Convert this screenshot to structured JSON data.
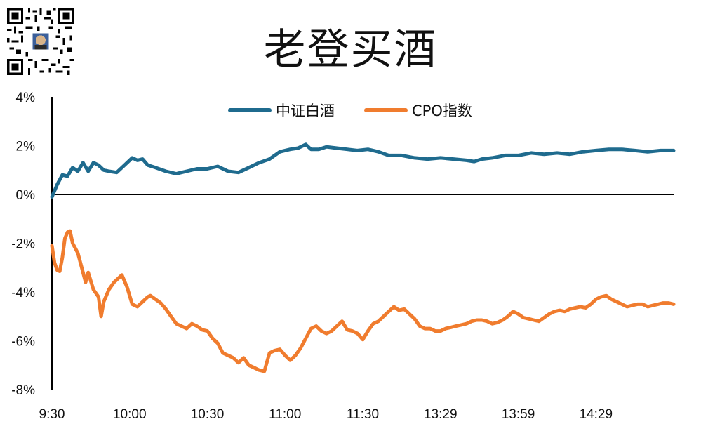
{
  "title": "老登买酒",
  "colors": {
    "series_1": "#1f6b8e",
    "series_2": "#f07c2e",
    "axis": "#000000"
  },
  "icons": {
    "qr": "qr-code-icon",
    "avatar": "avatar-icon"
  },
  "chart_data": {
    "type": "line",
    "title": "老登买酒",
    "xlabel": "",
    "ylabel": "",
    "ylim": [
      -8,
      4
    ],
    "y_ticks": [
      "4%",
      "2%",
      "0%",
      "-2%",
      "-4%",
      "-6%",
      "-8%"
    ],
    "y_tick_values": [
      4,
      2,
      0,
      -2,
      -4,
      -6,
      -8
    ],
    "x_ticks": [
      "9:30",
      "10:00",
      "10:30",
      "11:00",
      "11:30",
      "13:29",
      "13:59",
      "14:29"
    ],
    "x_tick_index": [
      0,
      30,
      60,
      90,
      120,
      150,
      180,
      210
    ],
    "x_count": 240,
    "grid": false,
    "legend_position": "top-center",
    "series": [
      {
        "name": "中证白酒",
        "points": [
          [
            0,
            -0.1
          ],
          [
            2,
            0.4
          ],
          [
            4,
            0.8
          ],
          [
            6,
            0.75
          ],
          [
            8,
            1.1
          ],
          [
            10,
            0.95
          ],
          [
            12,
            1.3
          ],
          [
            14,
            0.95
          ],
          [
            16,
            1.3
          ],
          [
            18,
            1.2
          ],
          [
            20,
            1.0
          ],
          [
            22,
            0.95
          ],
          [
            25,
            0.9
          ],
          [
            28,
            1.2
          ],
          [
            31,
            1.5
          ],
          [
            33,
            1.4
          ],
          [
            35,
            1.45
          ],
          [
            37,
            1.2
          ],
          [
            40,
            1.1
          ],
          [
            44,
            0.95
          ],
          [
            48,
            0.85
          ],
          [
            52,
            0.95
          ],
          [
            56,
            1.05
          ],
          [
            60,
            1.05
          ],
          [
            64,
            1.15
          ],
          [
            68,
            0.95
          ],
          [
            72,
            0.9
          ],
          [
            76,
            1.1
          ],
          [
            80,
            1.3
          ],
          [
            84,
            1.45
          ],
          [
            88,
            1.75
          ],
          [
            92,
            1.85
          ],
          [
            95,
            1.9
          ],
          [
            98,
            2.05
          ],
          [
            100,
            1.85
          ],
          [
            103,
            1.85
          ],
          [
            106,
            1.95
          ],
          [
            110,
            1.9
          ],
          [
            114,
            1.85
          ],
          [
            118,
            1.8
          ],
          [
            122,
            1.85
          ],
          [
            126,
            1.75
          ],
          [
            130,
            1.6
          ],
          [
            135,
            1.6
          ],
          [
            140,
            1.5
          ],
          [
            145,
            1.45
          ],
          [
            150,
            1.5
          ],
          [
            155,
            1.45
          ],
          [
            160,
            1.4
          ],
          [
            163,
            1.35
          ],
          [
            166,
            1.45
          ],
          [
            170,
            1.5
          ],
          [
            175,
            1.6
          ],
          [
            180,
            1.6
          ],
          [
            185,
            1.7
          ],
          [
            190,
            1.65
          ],
          [
            195,
            1.7
          ],
          [
            200,
            1.65
          ],
          [
            205,
            1.75
          ],
          [
            210,
            1.8
          ],
          [
            215,
            1.85
          ],
          [
            220,
            1.85
          ],
          [
            225,
            1.8
          ],
          [
            230,
            1.75
          ],
          [
            235,
            1.8
          ],
          [
            240,
            1.8
          ]
        ]
      },
      {
        "name": "CPO指数",
        "points": [
          [
            0,
            -2.1
          ],
          [
            1,
            -2.8
          ],
          [
            2,
            -3.1
          ],
          [
            3,
            -3.15
          ],
          [
            4,
            -2.6
          ],
          [
            5,
            -1.8
          ],
          [
            6,
            -1.55
          ],
          [
            7,
            -1.5
          ],
          [
            8,
            -2.0
          ],
          [
            10,
            -2.4
          ],
          [
            12,
            -3.2
          ],
          [
            13,
            -3.6
          ],
          [
            14,
            -3.2
          ],
          [
            16,
            -3.9
          ],
          [
            18,
            -4.2
          ],
          [
            19,
            -5.0
          ],
          [
            20,
            -4.4
          ],
          [
            22,
            -3.9
          ],
          [
            24,
            -3.6
          ],
          [
            26,
            -3.4
          ],
          [
            27,
            -3.3
          ],
          [
            29,
            -3.8
          ],
          [
            31,
            -4.5
          ],
          [
            33,
            -4.6
          ],
          [
            35,
            -4.4
          ],
          [
            37,
            -4.2
          ],
          [
            38,
            -4.15
          ],
          [
            40,
            -4.3
          ],
          [
            42,
            -4.45
          ],
          [
            44,
            -4.7
          ],
          [
            46,
            -5.0
          ],
          [
            48,
            -5.3
          ],
          [
            50,
            -5.4
          ],
          [
            52,
            -5.5
          ],
          [
            54,
            -5.3
          ],
          [
            56,
            -5.4
          ],
          [
            58,
            -5.55
          ],
          [
            60,
            -5.6
          ],
          [
            62,
            -5.9
          ],
          [
            64,
            -6.1
          ],
          [
            66,
            -6.5
          ],
          [
            68,
            -6.6
          ],
          [
            70,
            -6.7
          ],
          [
            72,
            -6.9
          ],
          [
            74,
            -6.7
          ],
          [
            76,
            -7.0
          ],
          [
            78,
            -7.1
          ],
          [
            80,
            -7.2
          ],
          [
            82,
            -7.25
          ],
          [
            84,
            -6.5
          ],
          [
            86,
            -6.4
          ],
          [
            88,
            -6.35
          ],
          [
            90,
            -6.6
          ],
          [
            92,
            -6.8
          ],
          [
            94,
            -6.6
          ],
          [
            96,
            -6.3
          ],
          [
            98,
            -5.9
          ],
          [
            100,
            -5.5
          ],
          [
            102,
            -5.4
          ],
          [
            104,
            -5.6
          ],
          [
            106,
            -5.7
          ],
          [
            108,
            -5.6
          ],
          [
            110,
            -5.4
          ],
          [
            112,
            -5.2
          ],
          [
            114,
            -5.55
          ],
          [
            116,
            -5.6
          ],
          [
            118,
            -5.7
          ],
          [
            120,
            -5.95
          ],
          [
            122,
            -5.6
          ],
          [
            124,
            -5.3
          ],
          [
            126,
            -5.2
          ],
          [
            128,
            -5.0
          ],
          [
            130,
            -4.8
          ],
          [
            132,
            -4.6
          ],
          [
            134,
            -4.75
          ],
          [
            136,
            -4.7
          ],
          [
            138,
            -4.9
          ],
          [
            140,
            -5.1
          ],
          [
            142,
            -5.4
          ],
          [
            144,
            -5.5
          ],
          [
            146,
            -5.5
          ],
          [
            148,
            -5.6
          ],
          [
            150,
            -5.6
          ],
          [
            152,
            -5.5
          ],
          [
            154,
            -5.45
          ],
          [
            156,
            -5.4
          ],
          [
            158,
            -5.35
          ],
          [
            160,
            -5.3
          ],
          [
            162,
            -5.2
          ],
          [
            164,
            -5.15
          ],
          [
            166,
            -5.15
          ],
          [
            168,
            -5.2
          ],
          [
            170,
            -5.3
          ],
          [
            172,
            -5.25
          ],
          [
            174,
            -5.15
          ],
          [
            176,
            -5.0
          ],
          [
            178,
            -4.8
          ],
          [
            180,
            -4.9
          ],
          [
            182,
            -5.05
          ],
          [
            184,
            -5.1
          ],
          [
            186,
            -5.15
          ],
          [
            188,
            -5.2
          ],
          [
            190,
            -5.05
          ],
          [
            192,
            -4.9
          ],
          [
            194,
            -4.8
          ],
          [
            196,
            -4.75
          ],
          [
            198,
            -4.8
          ],
          [
            200,
            -4.7
          ],
          [
            202,
            -4.65
          ],
          [
            204,
            -4.6
          ],
          [
            206,
            -4.65
          ],
          [
            208,
            -4.5
          ],
          [
            210,
            -4.3
          ],
          [
            212,
            -4.2
          ],
          [
            214,
            -4.15
          ],
          [
            216,
            -4.3
          ],
          [
            218,
            -4.4
          ],
          [
            220,
            -4.5
          ],
          [
            222,
            -4.6
          ],
          [
            224,
            -4.55
          ],
          [
            226,
            -4.5
          ],
          [
            228,
            -4.5
          ],
          [
            230,
            -4.6
          ],
          [
            232,
            -4.55
          ],
          [
            234,
            -4.5
          ],
          [
            236,
            -4.45
          ],
          [
            238,
            -4.45
          ],
          [
            240,
            -4.5
          ]
        ]
      }
    ]
  }
}
